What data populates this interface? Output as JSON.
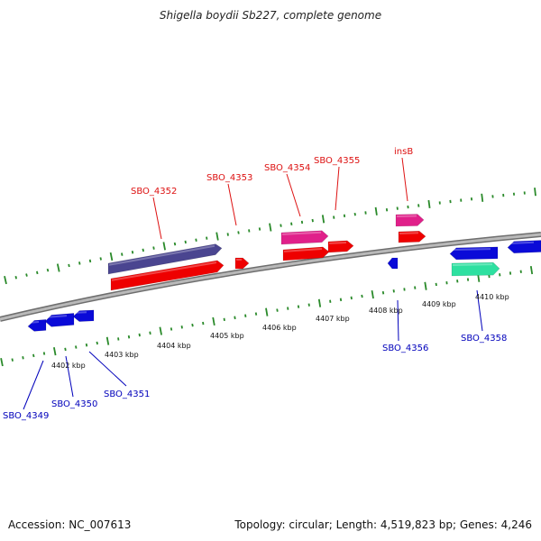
{
  "title": "Shigella boydii Sb227, complete genome",
  "footer": {
    "accession": "Accession: NC_007613",
    "topology": "Topology: circular; Length: 4,519,823 bp; Genes: 4,246"
  },
  "colors": {
    "backbone": "#8a8a8a",
    "tick": "#2a8a2a",
    "upper_label": "#dd1111",
    "lower_label": "#0000bb",
    "leader_upper": "#dd1111",
    "leader_lower": "#0000bb",
    "gene_red": "#ee0000",
    "gene_purple": "#4a4590",
    "gene_pink": "#e0208a",
    "gene_blue": "#0a0ad8",
    "gene_teal": "#2ee0a0"
  },
  "scale_labels": [
    "4402 kbp",
    "4403 kbp",
    "4404 kbp",
    "4405 kbp",
    "4406 kbp",
    "4407 kbp",
    "4408 kbp",
    "4409 kbp",
    "4410 kbp"
  ],
  "gene_labels": {
    "upper": [
      "SBO_4352",
      "SBO_4353",
      "SBO_4354",
      "SBO_4355",
      "insB"
    ],
    "lower": [
      "SBO_4349",
      "SBO_4350",
      "SBO_4351",
      "SBO_4356",
      "SBO_4358"
    ]
  }
}
